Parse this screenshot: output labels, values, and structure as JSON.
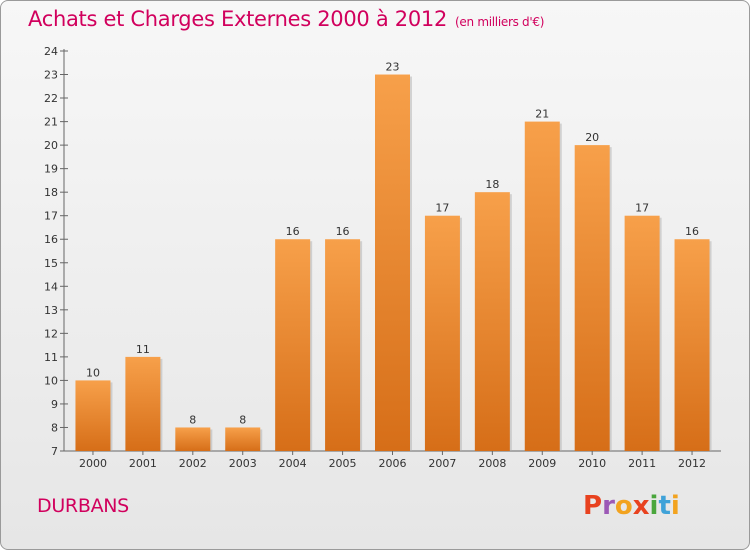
{
  "header": {
    "title": "Achats et Charges Externes 2000 à 2012",
    "unit": "(en milliers d'€)"
  },
  "footer": {
    "commune": "DURBANS",
    "logo": "Proxiti",
    "logo_colors": [
      "#e8421f",
      "#9c59b6",
      "#f2a31f",
      "#e8421f",
      "#4aa63c",
      "#3fa2d8",
      "#f2a31f"
    ]
  },
  "chart_data": {
    "type": "bar",
    "categories": [
      "2000",
      "2001",
      "2002",
      "2003",
      "2004",
      "2005",
      "2006",
      "2007",
      "2008",
      "2009",
      "2010",
      "2011",
      "2012"
    ],
    "values": [
      10,
      11,
      8,
      8,
      16,
      16,
      23,
      17,
      18,
      21,
      20,
      17,
      16
    ],
    "ylim": [
      7,
      24
    ],
    "yticks": [
      7,
      8,
      9,
      10,
      11,
      12,
      13,
      14,
      15,
      16,
      17,
      18,
      19,
      20,
      21,
      22,
      23,
      24
    ],
    "bar_color_top": "#f7a04a",
    "bar_color_bottom": "#d66e18",
    "grid": false
  }
}
